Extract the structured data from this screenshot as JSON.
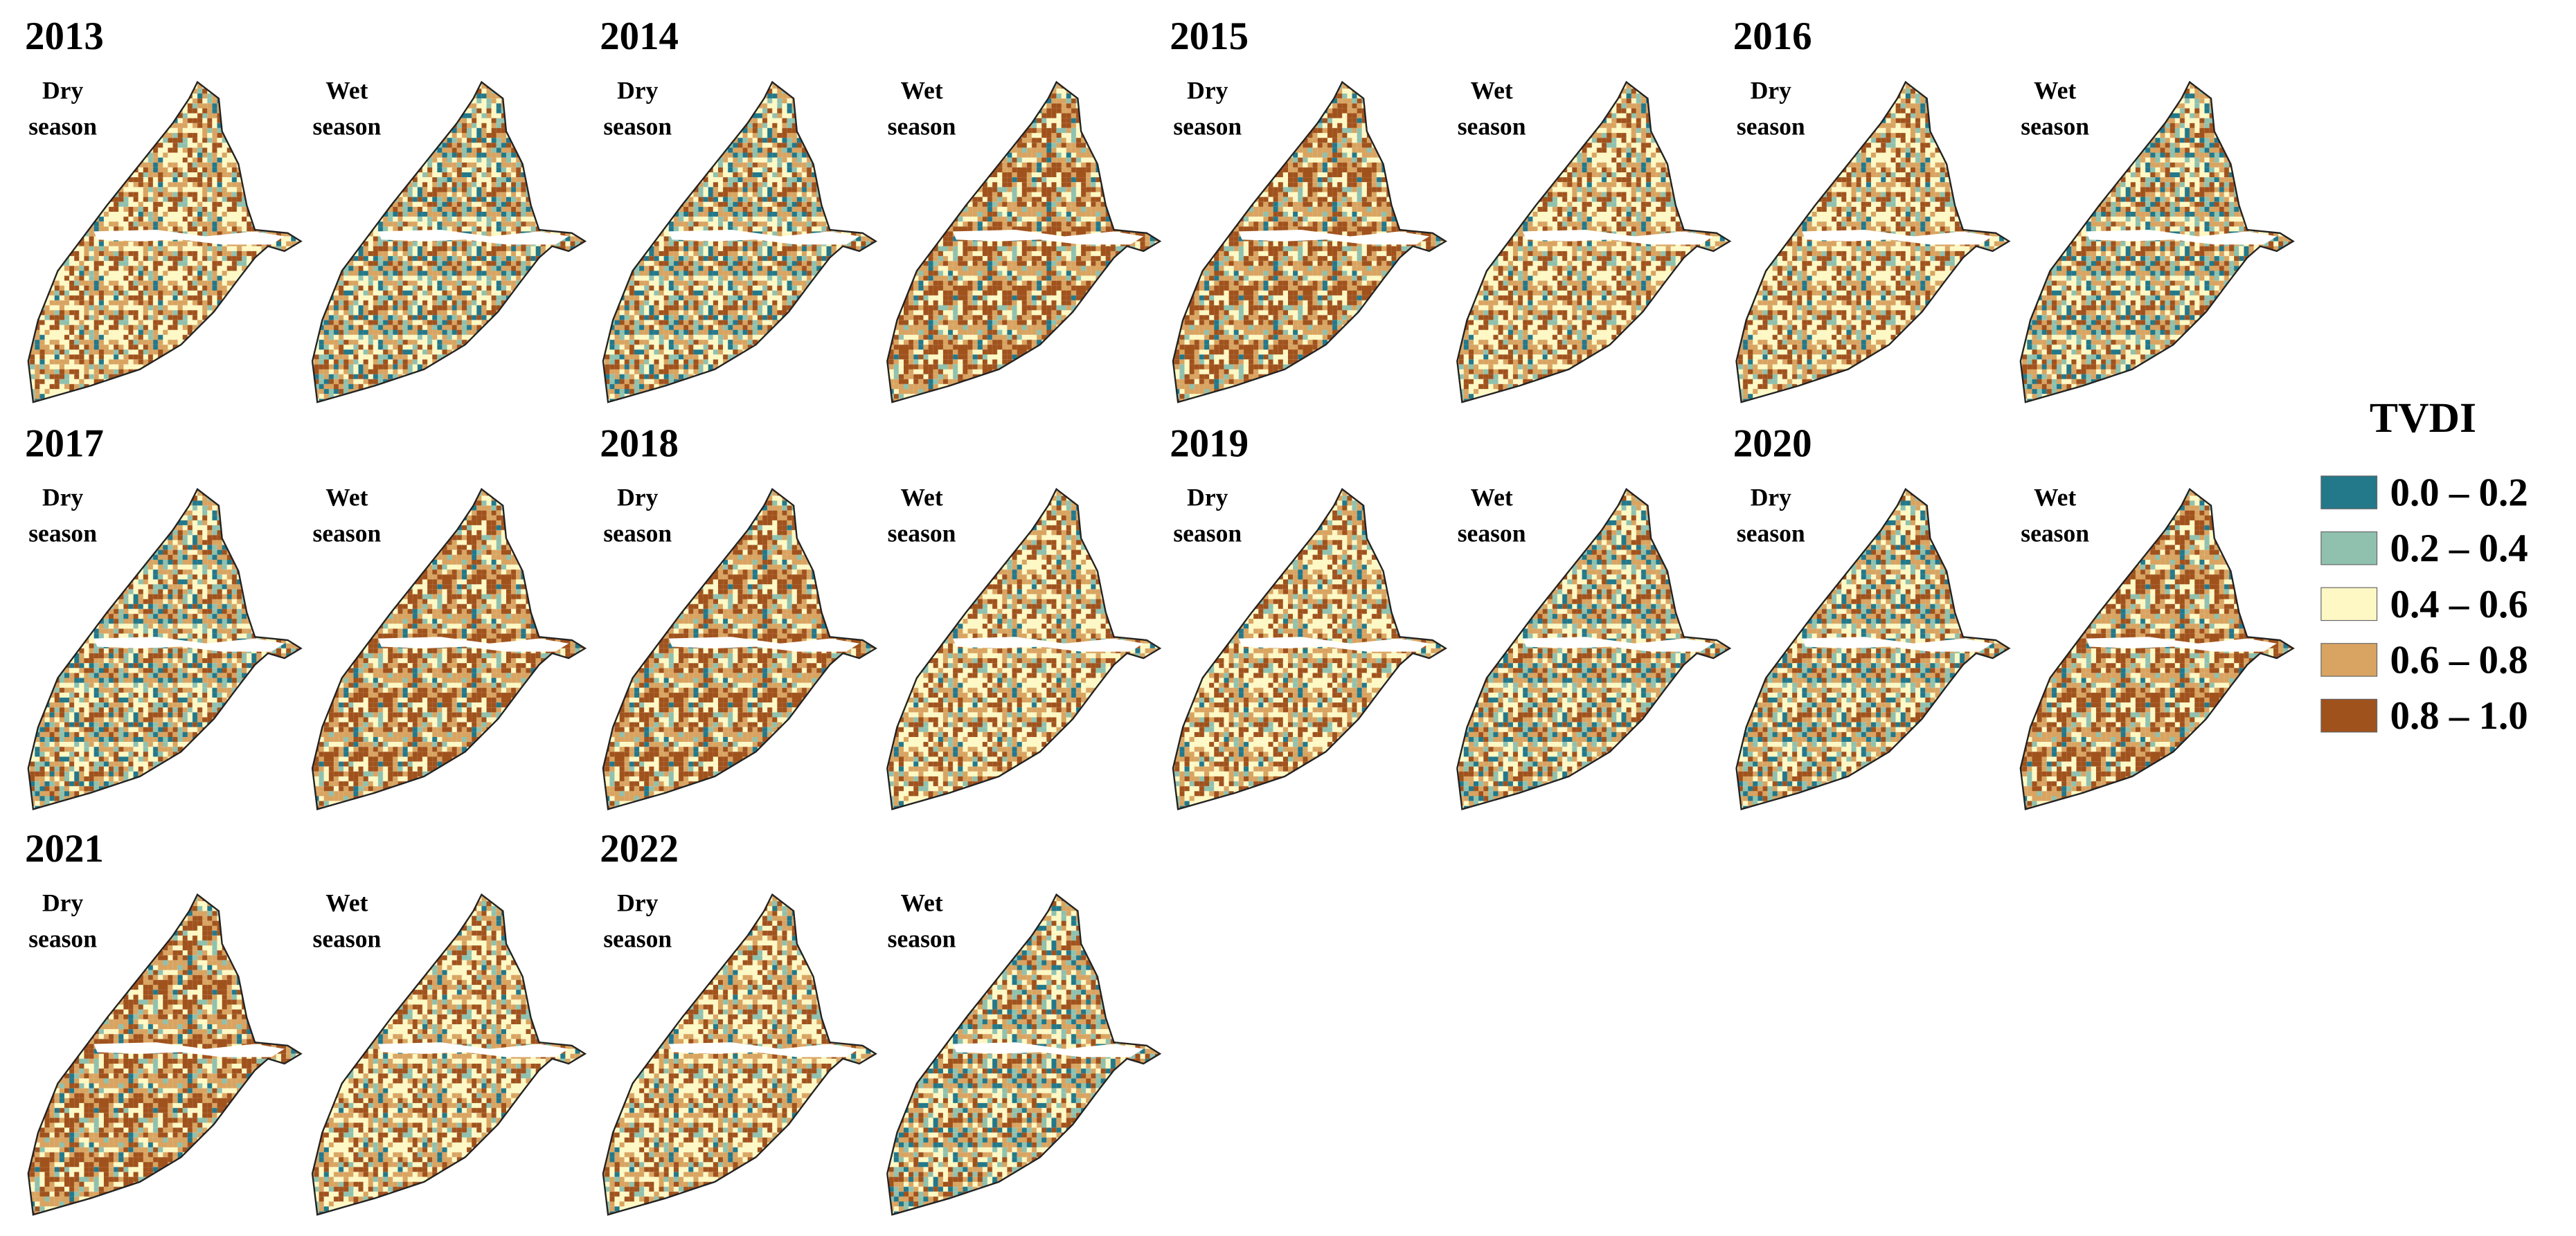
{
  "years": [
    {
      "year": "2013",
      "panels": [
        [
          "Dry",
          "season"
        ],
        [
          "Wet",
          "season"
        ]
      ]
    },
    {
      "year": "2014",
      "panels": [
        [
          "Dry",
          "season"
        ],
        [
          "Wet",
          "season"
        ]
      ]
    },
    {
      "year": "2015",
      "panels": [
        [
          "Dry",
          "season"
        ],
        [
          "Wet",
          "season"
        ]
      ]
    },
    {
      "year": "2016",
      "panels": [
        [
          "Dry",
          "season"
        ],
        [
          "Wet",
          "season"
        ]
      ]
    },
    {
      "year": "2017",
      "panels": [
        [
          "Dry",
          "season"
        ],
        [
          "Wet",
          "season"
        ]
      ]
    },
    {
      "year": "2018",
      "panels": [
        [
          "Dry",
          "season"
        ],
        [
          "Wet",
          "season"
        ]
      ]
    },
    {
      "year": "2019",
      "panels": [
        [
          "Dry",
          "season"
        ],
        [
          "Wet",
          "season"
        ]
      ]
    },
    {
      "year": "2020",
      "panels": [
        [
          "Dry",
          "season"
        ],
        [
          "Wet",
          "season"
        ]
      ]
    },
    {
      "year": "2021",
      "panels": [
        [
          "Dry",
          "season"
        ],
        [
          "Wet",
          "season"
        ]
      ]
    },
    {
      "year": "2022",
      "panels": [
        [
          "Dry",
          "season"
        ],
        [
          "Wet",
          "season"
        ]
      ]
    }
  ],
  "legend": {
    "title": "TVDI",
    "items": [
      {
        "label": "0.0 – 0.2",
        "color": "#23788a"
      },
      {
        "label": "0.2 – 0.4",
        "color": "#8fc1ae"
      },
      {
        "label": "0.4 – 0.6",
        "color": "#fdf8c4"
      },
      {
        "label": "0.6 – 0.8",
        "color": "#d9a461"
      },
      {
        "label": "0.8 – 1.0",
        "color": "#a0521d"
      }
    ]
  }
}
